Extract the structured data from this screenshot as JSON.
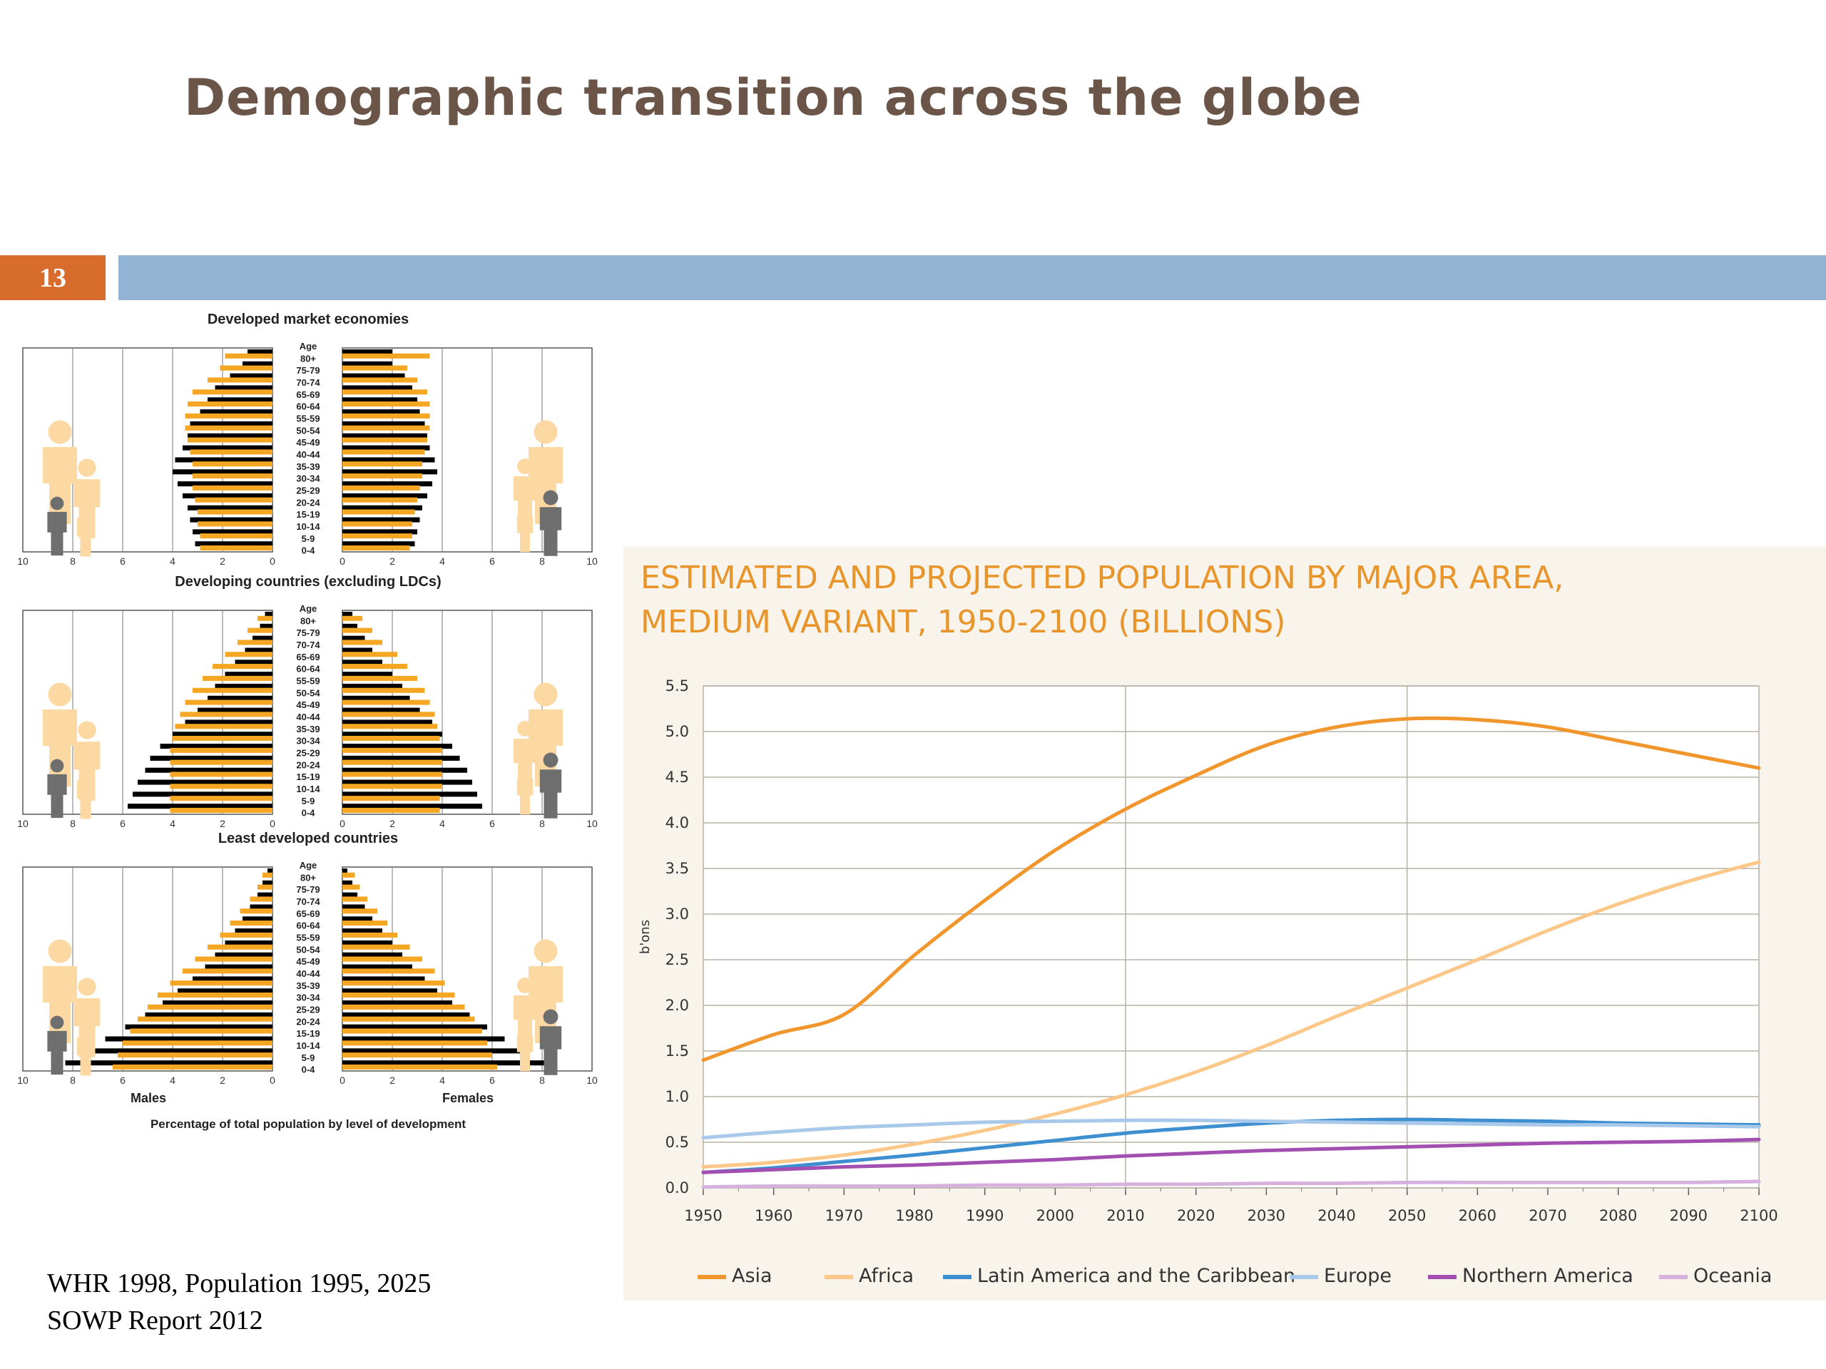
{
  "slide": {
    "title": "Demographic transition across the globe",
    "number": "13",
    "sources": [
      "WHR 1998, Population 1995, 2025",
      "SOWP Report 2012"
    ]
  },
  "colors": {
    "title": "#6b5548",
    "slide_number_bg": "#d86c2c",
    "band": "#93b3d3",
    "pyramid_1995": "#000000",
    "pyramid_2025": "#f5a623",
    "figure_light": "#fcd9a3",
    "figure_dark": "#6e6e6e"
  },
  "chart_data": [
    {
      "type": "bar",
      "subtype": "population-pyramid-set",
      "series_note": "black bars = 1995, orange bars = 2025",
      "age_label": "Age",
      "age_groups": [
        "80+",
        "75-79",
        "70-74",
        "65-69",
        "60-64",
        "55-59",
        "50-54",
        "45-49",
        "40-44",
        "35-39",
        "30-34",
        "25-29",
        "20-24",
        "15-19",
        "10-14",
        "5-9",
        "0-4"
      ],
      "x_ticks": [
        "10",
        "8",
        "6",
        "4",
        "2",
        "0",
        "0",
        "2",
        "4",
        "6",
        "8",
        "10"
      ],
      "xlim": [
        0,
        10
      ],
      "xlabel_left": "Males",
      "xlabel_right": "Females",
      "caption": "Percentage of total population by level of development",
      "pyramids": [
        {
          "title": "Developed market economies",
          "males_1995": [
            1.0,
            1.2,
            1.7,
            2.3,
            2.6,
            2.9,
            3.3,
            3.4,
            3.6,
            3.9,
            4.0,
            3.8,
            3.6,
            3.4,
            3.3,
            3.2,
            3.1
          ],
          "males_2025": [
            1.9,
            2.1,
            2.6,
            3.2,
            3.4,
            3.5,
            3.5,
            3.4,
            3.3,
            3.2,
            3.2,
            3.2,
            3.1,
            3.0,
            3.0,
            2.9,
            2.9
          ],
          "females_1995": [
            2.0,
            2.0,
            2.5,
            2.8,
            3.0,
            3.1,
            3.3,
            3.4,
            3.5,
            3.7,
            3.8,
            3.6,
            3.4,
            3.2,
            3.1,
            3.0,
            2.9
          ],
          "females_2025": [
            3.5,
            2.6,
            3.0,
            3.4,
            3.5,
            3.5,
            3.5,
            3.4,
            3.3,
            3.2,
            3.2,
            3.1,
            3.0,
            2.9,
            2.8,
            2.8,
            2.7
          ]
        },
        {
          "title": "Developing countries (excluding LDCs)",
          "males_1995": [
            0.3,
            0.5,
            0.8,
            1.1,
            1.5,
            1.9,
            2.3,
            2.6,
            3.0,
            3.5,
            4.0,
            4.5,
            4.9,
            5.1,
            5.4,
            5.6,
            5.8
          ],
          "males_2025": [
            0.6,
            1.0,
            1.4,
            1.9,
            2.4,
            2.8,
            3.2,
            3.5,
            3.7,
            3.9,
            4.0,
            4.1,
            4.1,
            4.1,
            4.1,
            4.1,
            4.1
          ],
          "females_1995": [
            0.4,
            0.6,
            0.9,
            1.2,
            1.6,
            2.0,
            2.4,
            2.7,
            3.1,
            3.6,
            4.0,
            4.4,
            4.7,
            5.0,
            5.2,
            5.4,
            5.6
          ],
          "females_2025": [
            0.8,
            1.2,
            1.6,
            2.2,
            2.6,
            3.0,
            3.3,
            3.5,
            3.7,
            3.8,
            3.9,
            4.0,
            4.0,
            4.0,
            4.0,
            3.9,
            3.9
          ]
        },
        {
          "title": "Least developed countries",
          "males_1995": [
            0.2,
            0.4,
            0.6,
            0.9,
            1.2,
            1.5,
            1.9,
            2.3,
            2.7,
            3.2,
            3.8,
            4.4,
            5.1,
            5.9,
            6.7,
            7.5,
            8.3
          ],
          "males_2025": [
            0.4,
            0.6,
            0.9,
            1.3,
            1.7,
            2.1,
            2.6,
            3.1,
            3.6,
            4.1,
            4.6,
            5.0,
            5.4,
            5.7,
            6.0,
            6.2,
            6.4
          ],
          "females_1995": [
            0.2,
            0.4,
            0.6,
            0.9,
            1.2,
            1.6,
            2.0,
            2.4,
            2.8,
            3.3,
            3.8,
            4.4,
            5.1,
            5.8,
            6.5,
            7.3,
            8.1
          ],
          "females_2025": [
            0.5,
            0.7,
            1.0,
            1.4,
            1.8,
            2.2,
            2.7,
            3.2,
            3.7,
            4.1,
            4.5,
            4.9,
            5.3,
            5.6,
            5.8,
            6.0,
            6.2
          ]
        }
      ]
    },
    {
      "type": "line",
      "title": "ESTIMATED AND PROJECTED POPULATION BY MAJOR AREA,",
      "subtitle": "MEDIUM VARIANT, 1950-2100 (BILLIONS)",
      "ylabel": "b'ons",
      "xlim": [
        1950,
        2100
      ],
      "ylim": [
        0,
        5.5
      ],
      "x_ticks": [
        "1950",
        "1960",
        "1970",
        "1980",
        "1990",
        "2000",
        "2010",
        "2020",
        "2030",
        "2040",
        "2050",
        "2060",
        "2070",
        "2080",
        "2090",
        "2100"
      ],
      "y_ticks": [
        "0.0",
        "0.5",
        "1.0",
        "1.5",
        "2.0",
        "2.5",
        "3.0",
        "3.5",
        "4.0",
        "4.5",
        "5.0",
        "5.5"
      ],
      "grid": true,
      "legend_position": "bottom",
      "x": [
        1950,
        1960,
        1970,
        1980,
        1990,
        2000,
        2010,
        2020,
        2030,
        2040,
        2050,
        2060,
        2070,
        2080,
        2090,
        2100
      ],
      "series": [
        {
          "name": "Asia",
          "color": "#f0962c",
          "width": 5,
          "values": [
            1.4,
            1.68,
            1.9,
            2.55,
            3.15,
            3.7,
            4.15,
            4.52,
            4.85,
            5.05,
            5.14,
            5.13,
            5.05,
            4.9,
            4.75,
            4.6
          ]
        },
        {
          "name": "Africa",
          "color": "#fcc88a",
          "width": 5,
          "values": [
            0.23,
            0.28,
            0.36,
            0.48,
            0.63,
            0.81,
            1.02,
            1.27,
            1.56,
            1.88,
            2.19,
            2.5,
            2.82,
            3.11,
            3.36,
            3.57
          ]
        },
        {
          "name": "Latin America and the Caribbean",
          "color": "#3d8fd0",
          "width": 5,
          "values": [
            0.17,
            0.22,
            0.29,
            0.36,
            0.44,
            0.52,
            0.6,
            0.66,
            0.71,
            0.74,
            0.75,
            0.74,
            0.73,
            0.71,
            0.7,
            0.69
          ]
        },
        {
          "name": "Europe",
          "color": "#a9c9ea",
          "width": 5,
          "values": [
            0.55,
            0.61,
            0.66,
            0.69,
            0.72,
            0.73,
            0.74,
            0.74,
            0.73,
            0.72,
            0.71,
            0.7,
            0.69,
            0.69,
            0.68,
            0.67
          ]
        },
        {
          "name": "Northern America",
          "color": "#a34fb1",
          "width": 5,
          "values": [
            0.17,
            0.2,
            0.23,
            0.25,
            0.28,
            0.31,
            0.35,
            0.38,
            0.41,
            0.43,
            0.45,
            0.47,
            0.49,
            0.5,
            0.51,
            0.53
          ]
        },
        {
          "name": "Oceania",
          "color": "#d7b1dd",
          "width": 5,
          "values": [
            0.01,
            0.02,
            0.02,
            0.02,
            0.03,
            0.03,
            0.04,
            0.04,
            0.05,
            0.05,
            0.06,
            0.06,
            0.06,
            0.06,
            0.06,
            0.07
          ]
        }
      ]
    }
  ]
}
